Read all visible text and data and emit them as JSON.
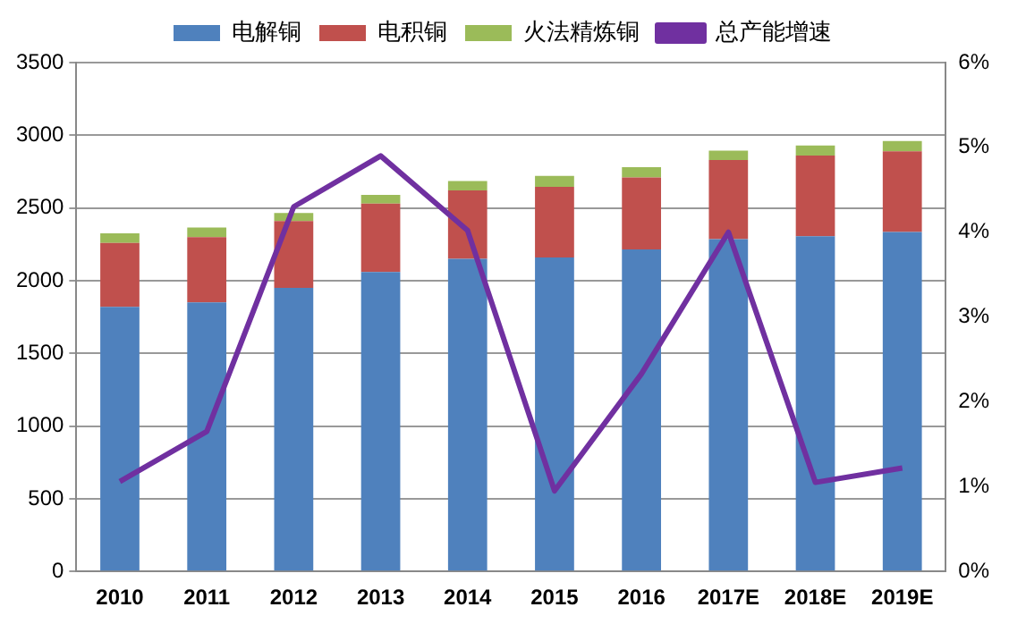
{
  "chart_data": {
    "type": "bar",
    "stacked": true,
    "categories": [
      "2010",
      "2011",
      "2012",
      "2013",
      "2014",
      "2015",
      "2016",
      "2017E",
      "2018E",
      "2019E"
    ],
    "series": [
      {
        "name": "电解铜",
        "color": "#4f81bd",
        "values": [
          1820,
          1850,
          1950,
          2060,
          2150,
          2160,
          2215,
          2285,
          2305,
          2335
        ]
      },
      {
        "name": "电积铜",
        "color": "#c0504d",
        "values": [
          440,
          450,
          460,
          470,
          470,
          485,
          495,
          545,
          555,
          555
        ]
      },
      {
        "name": "火法精炼铜",
        "color": "#9bbb59",
        "values": [
          65,
          65,
          55,
          60,
          65,
          75,
          70,
          65,
          70,
          70
        ]
      },
      {
        "name": "总产能增速",
        "type": "line",
        "axis": "y2",
        "color": "#7030a0",
        "values": [
          1.06,
          1.65,
          4.3,
          4.9,
          4.02,
          0.95,
          2.33,
          4.0,
          1.05,
          1.22
        ]
      }
    ],
    "ylim": [
      0,
      3500
    ],
    "yticks": [
      0,
      500,
      1000,
      1500,
      2000,
      2500,
      3000,
      3500
    ],
    "y2lim": [
      0,
      6
    ],
    "y2ticks": [
      {
        "value": 0,
        "label": "0%"
      },
      {
        "value": 1,
        "label": "1%"
      },
      {
        "value": 2,
        "label": "2%"
      },
      {
        "value": 3,
        "label": "3%"
      },
      {
        "value": 4,
        "label": "4%"
      },
      {
        "value": 5,
        "label": "5%"
      },
      {
        "value": 6,
        "label": "6%"
      }
    ],
    "grid": "y",
    "legend": "top",
    "marker": "none"
  }
}
